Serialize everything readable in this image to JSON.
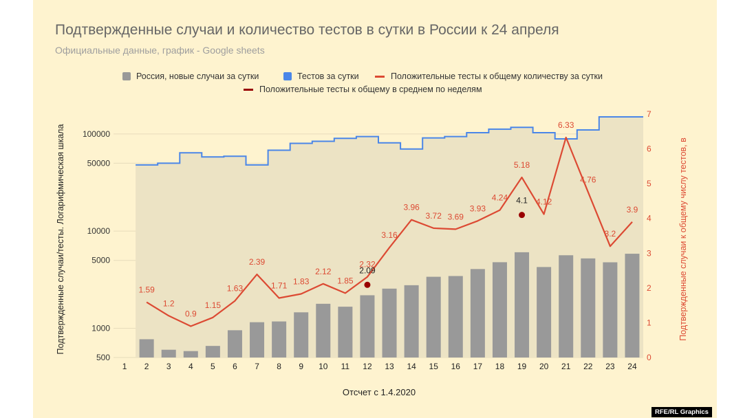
{
  "header": {
    "title": "Подтвержденные случаи и количество тестов в сутки в России к 24 апреля",
    "subtitle": "Официальные данные, график - Google sheets"
  },
  "legend": {
    "bars": "Россия, новые случаи за сутки",
    "tests": "Тестов за сутки",
    "ratio": "Положительные тесты к общему количеству за сутки",
    "weekly": "Положительные тесты к общему в среднем по неделям"
  },
  "credit": "RFE/RL Graphics",
  "chart_data": {
    "type": "bar",
    "title": "Подтвержденные случаи и количество тестов в сутки в России к 24 апреля",
    "subtitle": "Официальные данные, график - Google sheets",
    "xlabel": "Отсчет с 1.4.2020",
    "ylabel": "Подтвержденные случаи/тесты. Логарифмическая шкала",
    "y2label": "Подтвержденные случаи к общему числу тестов, в",
    "categories": [
      "1",
      "2",
      "3",
      "4",
      "5",
      "6",
      "7",
      "8",
      "9",
      "10",
      "11",
      "12",
      "13",
      "14",
      "15",
      "16",
      "17",
      "18",
      "19",
      "20",
      "21",
      "22",
      "23",
      "24"
    ],
    "y_scale": "log",
    "y_ticks": [
      500,
      1000,
      5000,
      10000,
      50000,
      100000
    ],
    "y_tick_labels": [
      "500",
      "1000",
      "5000",
      "10000",
      "50000",
      "100000"
    ],
    "y2_ticks": [
      0,
      1,
      2,
      3,
      4,
      5,
      6,
      7
    ],
    "y2lim": [
      0,
      7
    ],
    "series": [
      {
        "name": "Россия, новые случаи за сутки",
        "type": "bar",
        "axis": "left",
        "color": "#999999",
        "values": [
          null,
          771,
          601,
          582,
          658,
          954,
          1154,
          1175,
          1459,
          1786,
          1667,
          2186,
          2558,
          2774,
          3388,
          3448,
          4070,
          4785,
          6060,
          4268,
          5642,
          5236,
          4774,
          5849
        ]
      },
      {
        "name": "Тестов за сутки",
        "type": "step",
        "axis": "left",
        "color": "#4a86e8",
        "values": [
          null,
          48000,
          50000,
          64000,
          58000,
          59000,
          48000,
          68000,
          80000,
          84000,
          90000,
          94000,
          81000,
          70000,
          91000,
          94000,
          103000,
          112000,
          117000,
          103000,
          89000,
          110000,
          150000,
          150000
        ]
      },
      {
        "name": "Положительные тесты к общему количеству за сутки",
        "type": "line",
        "axis": "right",
        "color": "#dc4a33",
        "values": [
          null,
          1.59,
          1.2,
          0.9,
          1.15,
          1.63,
          2.39,
          1.71,
          1.83,
          2.12,
          1.85,
          2.32,
          3.16,
          3.96,
          3.72,
          3.69,
          3.93,
          4.24,
          5.18,
          4.12,
          6.33,
          4.76,
          3.2,
          3.9
        ],
        "labels": [
          null,
          "1.59",
          "1.2",
          "0.9",
          "1.15",
          "1.63",
          "2.39",
          "1.71",
          "1.83",
          "2.12",
          "1.85",
          "2.32",
          "3.16",
          "3.96",
          "3.72",
          "3.69",
          "3.93",
          "4.24",
          "5.18",
          "4.12",
          "6.33",
          "4.76",
          "3.2",
          "3.9"
        ]
      },
      {
        "name": "Положительные тесты к общему в среднем по неделям",
        "type": "scatter",
        "axis": "right",
        "color": "#990000",
        "points": [
          {
            "x": "12",
            "y": 2.09,
            "label": "2.09"
          },
          {
            "x": "19",
            "y": 4.1,
            "label": "4.1"
          }
        ]
      }
    ],
    "colors": {
      "bars": "#999999",
      "tests": "#4a86e8",
      "ratio": "#dc4a33",
      "weekly": "#990000",
      "area": "#ece3c4",
      "background": "#fef3cf"
    },
    "grid": true,
    "legend_position": "top"
  }
}
